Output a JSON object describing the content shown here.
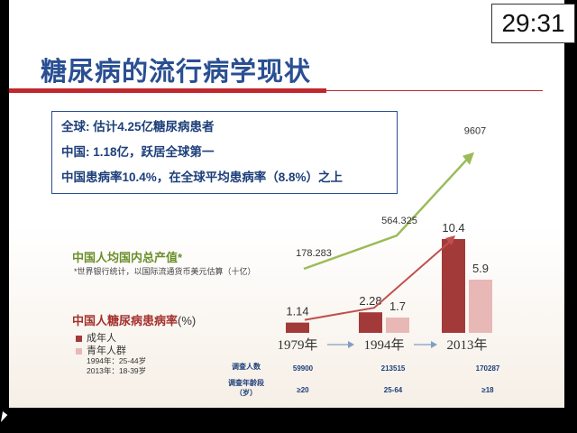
{
  "timer": "29:31",
  "title": "糖尿病的流行病学现状",
  "summary": [
    "全球: 估计4.25亿糖尿病患者",
    "中国: 1.18亿，跃居全球第一",
    "中国患病率10.4%，在全球平均患病率（8.8%）之上"
  ],
  "legend": {
    "gdp_label": "中国人均国内总产值*",
    "gdp_note": "*世界银行统计，以国际流通货币美元估算（十亿）",
    "prevalence_label": "中国人糖尿病患病率",
    "prevalence_unit": "(%)",
    "adult": "成年人",
    "youth": "青年人群",
    "youth_age_1994": "1994年：25-44岁",
    "youth_age_2013": "2013年：18-39岁"
  },
  "table": {
    "row1_label": "调查人数",
    "row2_label_a": "调查年龄段",
    "row2_label_b": "（岁）",
    "counts": [
      "59900",
      "213515",
      "170287"
    ],
    "ages": [
      "≥20",
      "25-64",
      "≥18"
    ]
  },
  "chart_data": {
    "type": "bar",
    "categories": [
      "1979年",
      "1994年",
      "2013年"
    ],
    "series": [
      {
        "name": "成年人",
        "values": [
          1.14,
          2.28,
          10.4
        ],
        "color": "#a33a3a"
      },
      {
        "name": "青年人群",
        "values": [
          null,
          1.7,
          5.9
        ],
        "color": "#e8b8b6"
      }
    ],
    "line_series": [
      {
        "name": "中国人均国内总产值*",
        "values": [
          178.283,
          564.325,
          9607
        ],
        "color": "#9bbb59"
      }
    ],
    "trend_color": "#c0504d"
  }
}
